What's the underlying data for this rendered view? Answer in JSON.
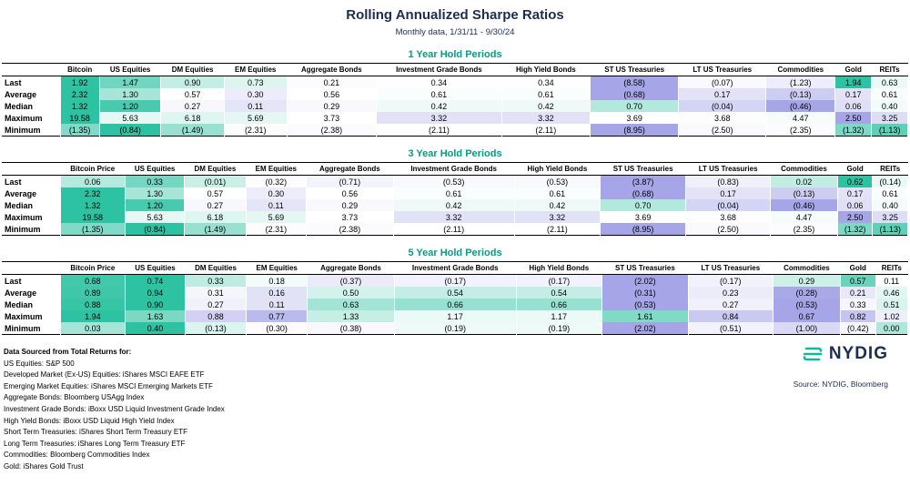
{
  "title": "Rolling Annualized Sharpe Ratios",
  "subtitle": "Monthly data, 1/31/11 - 9/30/24",
  "colors": {
    "cell_green": "#2dc2a1",
    "cell_purple": "#a6a5e7",
    "section_title": "#009e82",
    "navy": "#1c2d52",
    "logo_teal": "#12b89b"
  },
  "chart_data": [
    {
      "type": "table",
      "title": "1 Year Hold Periods",
      "columns": [
        "Bitcoin",
        "US Equities",
        "DM Equities",
        "EM Equities",
        "Aggregate Bonds",
        "Investment Grade Bonds",
        "High Yield Bonds",
        "ST US Treasuries",
        "LT US Treasuries",
        "Commodities",
        "Gold",
        "REITs"
      ],
      "row_labels": [
        "Last",
        "Average",
        "Median",
        "Maximum",
        "Minimum"
      ],
      "rows": [
        [
          1.92,
          1.47,
          0.9,
          0.73,
          0.21,
          0.34,
          0.34,
          -8.58,
          -0.07,
          -1.23,
          1.94,
          0.63
        ],
        [
          2.32,
          1.3,
          0.57,
          0.3,
          0.56,
          0.61,
          0.61,
          -0.68,
          0.17,
          -0.13,
          0.17,
          0.61
        ],
        [
          1.32,
          1.2,
          0.27,
          0.11,
          0.29,
          0.42,
          0.42,
          0.7,
          -0.04,
          -0.46,
          0.06,
          0.4
        ],
        [
          19.58,
          5.63,
          6.18,
          5.69,
          3.73,
          3.32,
          3.32,
          3.69,
          3.68,
          4.47,
          2.5,
          3.25
        ],
        [
          -1.35,
          -0.84,
          -1.49,
          -2.31,
          -2.38,
          -2.11,
          -2.11,
          -8.95,
          -2.5,
          -2.35,
          -1.32,
          -1.13
        ]
      ]
    },
    {
      "type": "table",
      "title": "3 Year Hold Periods",
      "columns": [
        "Bitcoin Price",
        "US Equities",
        "DM Equities",
        "EM Equities",
        "Aggregate Bonds",
        "Investment Grade Bonds",
        "High Yield Bonds",
        "ST US Treasuries",
        "LT US Treasuries",
        "Commodities",
        "Gold",
        "REITs"
      ],
      "row_labels": [
        "Last",
        "Average",
        "Median",
        "Maximum",
        "Minimum"
      ],
      "rows": [
        [
          0.06,
          0.33,
          -0.01,
          -0.32,
          -0.71,
          -0.53,
          -0.53,
          -3.87,
          -0.83,
          0.02,
          0.62,
          -0.14
        ],
        [
          2.32,
          1.3,
          0.57,
          0.3,
          0.56,
          0.61,
          0.61,
          -0.68,
          0.17,
          -0.13,
          0.17,
          0.61
        ],
        [
          1.32,
          1.2,
          0.27,
          0.11,
          0.29,
          0.42,
          0.42,
          0.7,
          -0.04,
          -0.46,
          0.06,
          0.4
        ],
        [
          19.58,
          5.63,
          6.18,
          5.69,
          3.73,
          3.32,
          3.32,
          3.69,
          3.68,
          4.47,
          2.5,
          3.25
        ],
        [
          -1.35,
          -0.84,
          -1.49,
          -2.31,
          -2.38,
          -2.11,
          -2.11,
          -8.95,
          -2.5,
          -2.35,
          -1.32,
          -1.13
        ]
      ]
    },
    {
      "type": "table",
      "title": "5 Year Hold Periods",
      "columns": [
        "Bitcoin Price",
        "US Equities",
        "DM Equities",
        "EM Equities",
        "Aggregate Bonds",
        "Investment Grade Bonds",
        "High Yield Bonds",
        "ST US Treasuries",
        "LT US Treasuries",
        "Commodities",
        "Gold",
        "REITs"
      ],
      "row_labels": [
        "Last",
        "Average",
        "Median",
        "Maximum",
        "Minimum"
      ],
      "rows": [
        [
          0.68,
          0.74,
          0.33,
          0.18,
          -0.37,
          -0.17,
          -0.17,
          -2.02,
          -0.17,
          0.29,
          0.57,
          0.11
        ],
        [
          0.89,
          0.94,
          0.31,
          0.16,
          0.5,
          0.54,
          0.54,
          -0.31,
          0.23,
          -0.28,
          0.21,
          0.46
        ],
        [
          0.88,
          0.9,
          0.27,
          0.11,
          0.63,
          0.66,
          0.66,
          -0.53,
          0.27,
          -0.53,
          0.33,
          0.51
        ],
        [
          1.94,
          1.63,
          0.88,
          0.77,
          1.33,
          1.17,
          1.17,
          1.61,
          0.84,
          0.67,
          0.82,
          1.02
        ],
        [
          0.03,
          0.4,
          -0.13,
          -0.3,
          -0.38,
          -0.19,
          -0.19,
          -2.02,
          -0.51,
          -1.0,
          -0.42,
          0.0
        ]
      ]
    }
  ],
  "footnotes": [
    "Data Sourced from Total Returns for:",
    "US Equities: S&P 500",
    "Developed Market (Ex-US) Equities: iShares MSCI EAFE ETF",
    "Emerging Market Equities: iShares MSCI Emerging Markets ETF",
    "Aggregate Bonds: Bloomberg USAgg Index",
    "Investment Grade Bonds: iBoxx USD Liquid Investment Grade Index",
    "High Yield Bonds: iBoxx USD Liquid High Yield Index",
    "Short Term Treasuries: iShares Short Term Treasury ETF",
    "Long Term Treasuries: iShares Long Term Treasury ETF",
    "Commodities: Bloomberg Commodities Index",
    "Gold: iShares Gold Trust"
  ],
  "brand": {
    "name": "NYDIG",
    "source": "Source: NYDIG, Bloomberg"
  }
}
